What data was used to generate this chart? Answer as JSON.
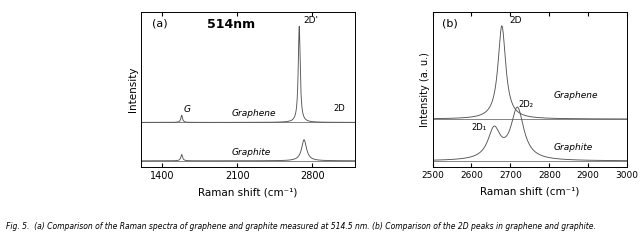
{
  "fig_width": 6.4,
  "fig_height": 2.38,
  "dpi": 100,
  "panel_a": {
    "label": "(a)",
    "title": "514nm",
    "xlabel": "Raman shift (cm⁻¹)",
    "ylabel": "Intensity",
    "xlim": [
      1200,
      3200
    ],
    "xticks": [
      1400,
      2100,
      2800
    ],
    "graphene_label": "Graphene",
    "graphite_label": "Graphite",
    "G_label": "G",
    "twoD_label": "2D'",
    "twoD_small_label": "2D"
  },
  "panel_b": {
    "label": "(b)",
    "xlabel": "Raman shift (cm⁻¹)",
    "ylabel": "Intensity (a. u.)",
    "xlim": [
      2500,
      3000
    ],
    "xticks": [
      2500,
      2600,
      2700,
      2800,
      2900,
      3000
    ],
    "graphene_label": "Graphene",
    "graphite_label": "Graphite",
    "twoD_label": "2D",
    "twoD1_label": "2D₁",
    "twoD2_label": "2D₂"
  },
  "line_color": "#555555",
  "bg_color": "#ffffff",
  "caption": "Fig. 5.  (a) Comparison of the Raman spectra of graphene and graphite measured at 514.5 nm. (b) Comparison of the 2D peaks in graphene and graphite."
}
